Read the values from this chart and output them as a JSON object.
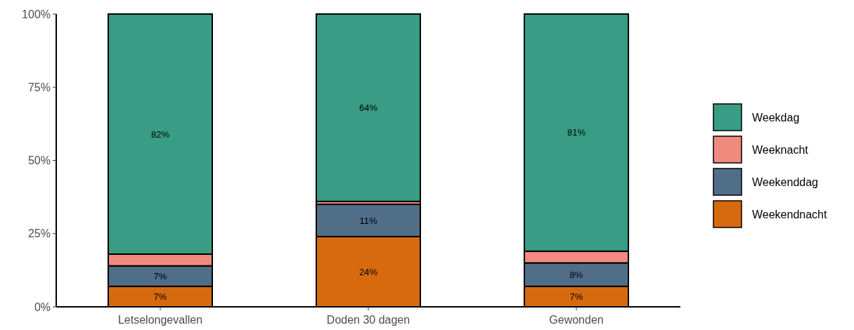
{
  "chart_data": {
    "type": "bar",
    "stacked": true,
    "categories": [
      "Letselongevallen",
      "Doden 30 dagen",
      "Gewonden"
    ],
    "series": [
      {
        "name": "Weekendnacht",
        "color": "#d76a0f",
        "values": [
          7,
          24,
          7
        ],
        "value_labels": [
          "7%",
          "24%",
          "7%"
        ]
      },
      {
        "name": "Weekenddag",
        "color": "#506e88",
        "values": [
          7,
          11,
          8
        ],
        "value_labels": [
          "7%",
          "11%",
          "8%"
        ]
      },
      {
        "name": "Weeknacht",
        "color": "#f08b80",
        "values": [
          4,
          1,
          4
        ],
        "value_labels": [
          null,
          null,
          null
        ]
      },
      {
        "name": "Weekdag",
        "color": "#389d84",
        "values": [
          82,
          64,
          81
        ],
        "value_labels": [
          "82%",
          "64%",
          "81%"
        ]
      }
    ],
    "ylim": [
      0,
      100
    ],
    "yticks": [
      {
        "value": 0,
        "label": "0%"
      },
      {
        "value": 25,
        "label": "25%"
      },
      {
        "value": 50,
        "label": "50%"
      },
      {
        "value": 75,
        "label": "75%"
      },
      {
        "value": 100,
        "label": "100%"
      }
    ],
    "grid": false,
    "legend": "right"
  }
}
